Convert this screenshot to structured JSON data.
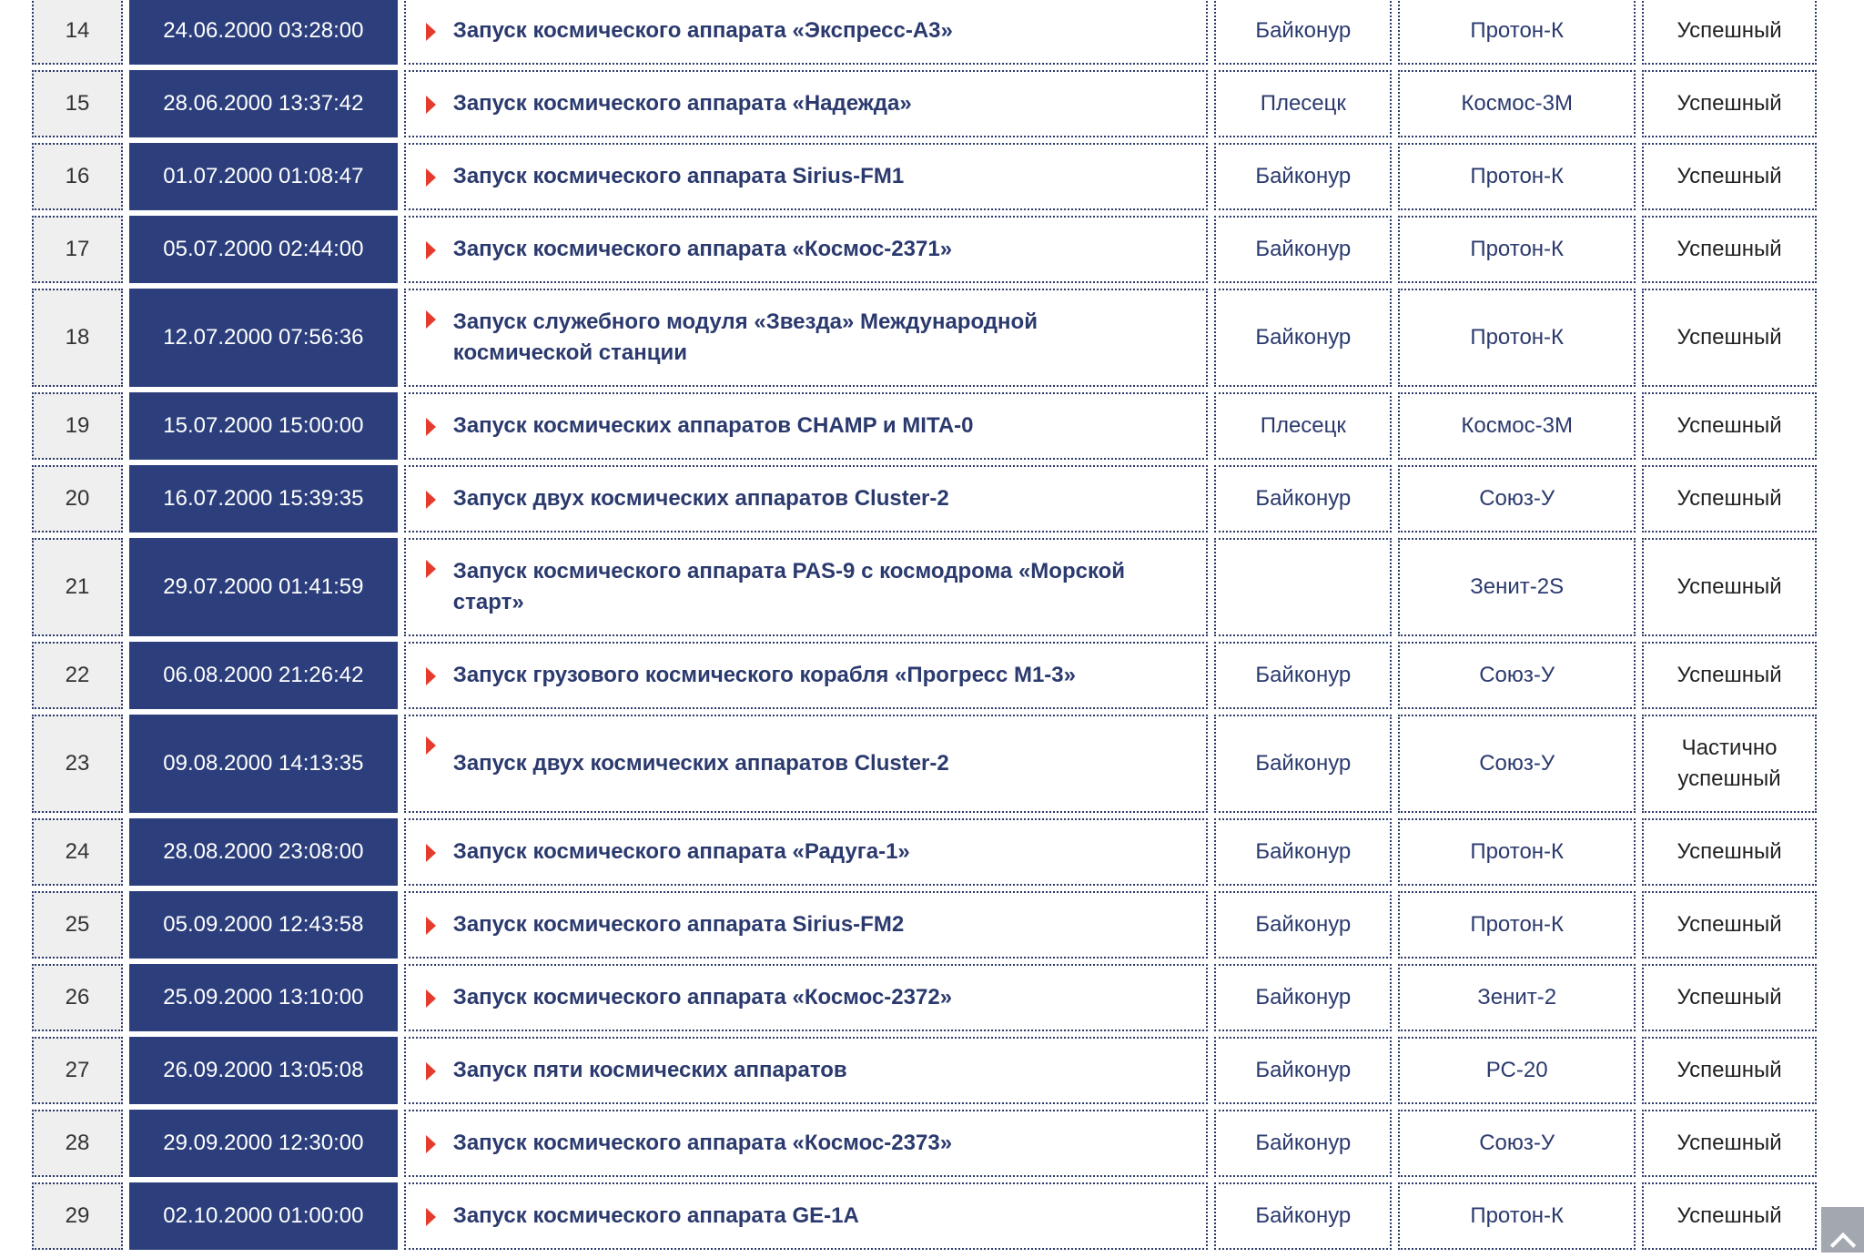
{
  "colors": {
    "date_bg": "#2c3f7c",
    "number_bg": "#efefef",
    "link_text": "#2b3a6e",
    "arrow": "#e53b2c",
    "scroll_button": "#a3a7b0"
  },
  "rows": [
    {
      "n": "14",
      "date": "24.06.2000 03:28:00",
      "title": "Запуск космического аппарата «Экспресс-А3»",
      "site": "Байконур",
      "rocket": "Протон-К",
      "result": "Успешный"
    },
    {
      "n": "15",
      "date": "28.06.2000 13:37:42",
      "title": "Запуск космического аппарата «Надежда»",
      "site": "Плесецк",
      "rocket": "Космос-3М",
      "result": "Успешный"
    },
    {
      "n": "16",
      "date": "01.07.2000 01:08:47",
      "title": "Запуск космического аппарата Sirius-FM1",
      "site": "Байконур",
      "rocket": "Протон-К",
      "result": "Успешный"
    },
    {
      "n": "17",
      "date": "05.07.2000 02:44:00",
      "title": "Запуск космического аппарата «Космос-2371»",
      "site": "Байконур",
      "rocket": "Протон-К",
      "result": "Успешный"
    },
    {
      "n": "18",
      "date": "12.07.2000 07:56:36",
      "title": "Запуск служебного модуля «Звезда» Международной космической станции",
      "site": "Байконур",
      "rocket": "Протон-К",
      "result": "Успешный",
      "tall": true
    },
    {
      "n": "19",
      "date": "15.07.2000 15:00:00",
      "title": "Запуск космических аппаратов CHAMP и MITA-0",
      "site": "Плесецк",
      "rocket": "Космос-3М",
      "result": "Успешный"
    },
    {
      "n": "20",
      "date": "16.07.2000 15:39:35",
      "title": "Запуск двух космических аппаратов Cluster-2",
      "site": "Байконур",
      "rocket": "Союз-У",
      "result": "Успешный"
    },
    {
      "n": "21",
      "date": "29.07.2000 01:41:59",
      "title": "Запуск космического аппарата PAS-9 с космодрома «Морской старт»",
      "site": "",
      "rocket": "Зенит-2S",
      "result": "Успешный",
      "tall": true
    },
    {
      "n": "22",
      "date": "06.08.2000 21:26:42",
      "title": "Запуск грузового космического корабля «Прогресс М1-3»",
      "site": "Байконур",
      "rocket": "Союз-У",
      "result": "Успешный"
    },
    {
      "n": "23",
      "date": "09.08.2000 14:13:35",
      "title": "Запуск двух космических аппаратов Cluster-2",
      "site": "Байконур",
      "rocket": "Союз-У",
      "result": "Частично успешный",
      "tall": true
    },
    {
      "n": "24",
      "date": "28.08.2000 23:08:00",
      "title": "Запуск космического аппарата «Радуга-1»",
      "site": "Байконур",
      "rocket": "Протон-К",
      "result": "Успешный"
    },
    {
      "n": "25",
      "date": "05.09.2000 12:43:58",
      "title": "Запуск космического аппарата Sirius-FM2",
      "site": "Байконур",
      "rocket": "Протон-К",
      "result": "Успешный"
    },
    {
      "n": "26",
      "date": "25.09.2000 13:10:00",
      "title": "Запуск космического аппарата «Космос-2372»",
      "site": "Байконур",
      "rocket": "Зенит-2",
      "result": "Успешный"
    },
    {
      "n": "27",
      "date": "26.09.2000 13:05:08",
      "title": "Запуск пяти космических аппаратов",
      "site": "Байконур",
      "rocket": "РС-20",
      "result": "Успешный"
    },
    {
      "n": "28",
      "date": "29.09.2000 12:30:00",
      "title": "Запуск космического аппарата «Космос-2373»",
      "site": "Байконур",
      "rocket": "Союз-У",
      "result": "Успешный"
    },
    {
      "n": "29",
      "date": "02.10.2000 01:00:00",
      "title": "Запуск космического аппарата GE-1A",
      "site": "Байконур",
      "rocket": "Протон-К",
      "result": "Успешный"
    }
  ],
  "scroll_top": {
    "icon": "chevron-up-icon"
  }
}
